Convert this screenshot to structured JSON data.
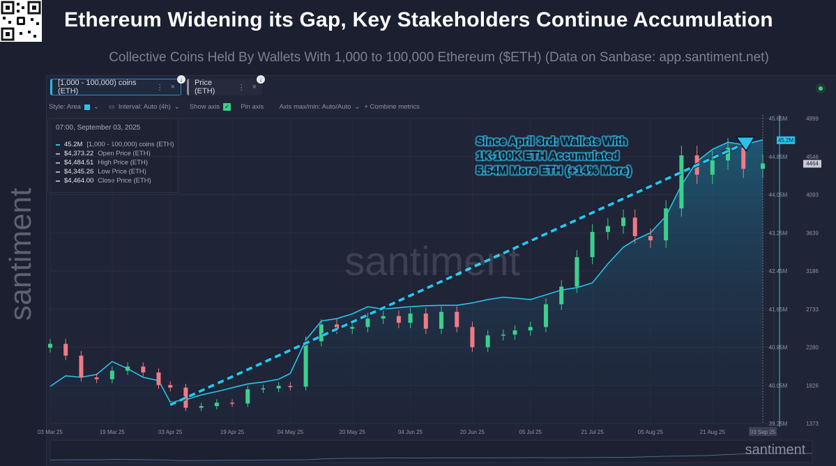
{
  "title": "Ethereum Widening its Gap, Key Stakeholders Continue Accumulation",
  "subtitle": "Collective Coins Held By Wallets With 1,000 to 100,000 Ethereum ($ETH) (Data on Sanbase: app.santiment.net)",
  "watermark": "santiment",
  "side_watermark": "santiment",
  "metric_chips": [
    {
      "label": "[1,000 - 100,000) coins (ETH)",
      "dots": "⋮",
      "close": "×"
    },
    {
      "label": "Price (ETH)",
      "dots": "⋮",
      "close": "×"
    }
  ],
  "toolbar": {
    "style": "Style: Area",
    "interval": "Interval: Auto (4h)",
    "show_axis": "Show axis",
    "pin_axis": "Pin axis",
    "axis_maxmin": "Axis max/min: Auto/Auto",
    "combine": "+ Combine metrics"
  },
  "legend": {
    "date": "07:00, September 03, 2025",
    "rows": [
      {
        "value": "45.2M",
        "label": "[1,000 - 100,000) coins (ETH)",
        "color": "#26c4ec"
      },
      {
        "value": "$4,373.22",
        "label": "Open Price (ETH)"
      },
      {
        "value": "$4,484.51",
        "label": "High Price (ETH)"
      },
      {
        "value": "$4,345.26",
        "label": "Low Price (ETH)"
      },
      {
        "value": "$4,464.00",
        "label": "Close Price (ETH)"
      }
    ]
  },
  "annotation": [
    "Since April 3rd: Wallets With",
    "1K-100K ETH Accumulated",
    "5.54M More ETH (+14% More)"
  ],
  "colors": {
    "holdings": "#26c4ec",
    "up": "#3ccf8e",
    "down": "#f07a86",
    "background": "#202437"
  },
  "chart_data": {
    "type": "line",
    "x_ticks": [
      "03 Mar 25",
      "19 Mar 25",
      "03 Apr 25",
      "19 Apr 25",
      "04 May 25",
      "20 May 25",
      "04 Jun 25",
      "20 Jun 25",
      "05 Jul 25",
      "21 Jul 25",
      "05 Aug 25",
      "21 Aug 25",
      "03 Sep 25"
    ],
    "y_right_holdings_ticks": [
      "45.65M",
      "44.85M",
      "44.05M",
      "43.25M",
      "42.45M",
      "41.65M",
      "40.85M",
      "40.05M",
      "39.25M"
    ],
    "y_right_price_ticks": [
      "4999",
      "4546",
      "4093",
      "3639",
      "3186",
      "2733",
      "2280",
      "1826",
      "1373"
    ],
    "holdings_ylim": [
      39.25,
      45.65
    ],
    "price_ylim": [
      1373,
      4999
    ],
    "current_holdings_label": "45.2M",
    "current_price_label": "4464",
    "series": [
      {
        "name": "[1,000 - 100,000) coins (ETH)",
        "unit": "M ETH",
        "style": "area",
        "x": [
          "03 Mar 25",
          "07 Mar 25",
          "11 Mar 25",
          "15 Mar 25",
          "19 Mar 25",
          "23 Mar 25",
          "27 Mar 25",
          "31 Mar 25",
          "03 Apr 25",
          "07 Apr 25",
          "11 Apr 25",
          "15 Apr 25",
          "19 Apr 25",
          "23 Apr 25",
          "27 Apr 25",
          "01 May 25",
          "04 May 25",
          "08 May 25",
          "12 May 25",
          "16 May 25",
          "20 May 25",
          "24 May 25",
          "28 May 25",
          "01 Jun 25",
          "04 Jun 25",
          "08 Jun 25",
          "12 Jun 25",
          "16 Jun 25",
          "20 Jun 25",
          "24 Jun 25",
          "28 Jun 25",
          "01 Jul 25",
          "05 Jul 25",
          "09 Jul 25",
          "13 Jul 25",
          "17 Jul 25",
          "21 Jul 25",
          "25 Jul 25",
          "29 Jul 25",
          "01 Aug 25",
          "05 Aug 25",
          "09 Aug 25",
          "13 Aug 25",
          "17 Aug 25",
          "21 Aug 25",
          "25 Aug 25",
          "29 Aug 25",
          "03 Sep 25"
        ],
        "values": [
          40.03,
          40.25,
          40.22,
          40.28,
          40.55,
          40.4,
          40.22,
          40.15,
          39.7,
          39.75,
          39.85,
          39.92,
          40.0,
          40.08,
          40.12,
          40.18,
          40.3,
          41.0,
          41.4,
          41.45,
          41.55,
          41.7,
          41.65,
          41.68,
          41.7,
          41.72,
          41.73,
          41.73,
          41.78,
          41.85,
          41.9,
          41.88,
          41.85,
          41.95,
          42.05,
          42.1,
          42.2,
          42.6,
          42.95,
          43.1,
          43.25,
          43.6,
          44.25,
          44.75,
          45.0,
          45.15,
          45.1,
          45.2
        ]
      },
      {
        "name": "Price (ETH)",
        "unit": "USD",
        "style": "candles",
        "x": [
          "03 Mar 25",
          "07 Mar 25",
          "11 Mar 25",
          "15 Mar 25",
          "19 Mar 25",
          "23 Mar 25",
          "27 Mar 25",
          "31 Mar 25",
          "03 Apr 25",
          "07 Apr 25",
          "11 Apr 25",
          "15 Apr 25",
          "19 Apr 25",
          "23 Apr 25",
          "27 Apr 25",
          "01 May 25",
          "04 May 25",
          "08 May 25",
          "12 May 25",
          "16 May 25",
          "20 May 25",
          "24 May 25",
          "28 May 25",
          "01 Jun 25",
          "04 Jun 25",
          "08 Jun 25",
          "12 Jun 25",
          "16 Jun 25",
          "20 Jun 25",
          "24 Jun 25",
          "28 Jun 25",
          "01 Jul 25",
          "05 Jul 25",
          "09 Jul 25",
          "13 Jul 25",
          "17 Jul 25",
          "21 Jul 25",
          "25 Jul 25",
          "29 Jul 25",
          "01 Aug 25",
          "05 Aug 25",
          "09 Aug 25",
          "13 Aug 25",
          "17 Aug 25",
          "21 Aug 25",
          "25 Aug 25",
          "29 Aug 25",
          "03 Sep 25"
        ],
        "values": [
          2320,
          2180,
          1920,
          1900,
          2000,
          2050,
          1980,
          1830,
          1800,
          1560,
          1580,
          1620,
          1610,
          1780,
          1790,
          1820,
          1810,
          2350,
          2550,
          2500,
          2520,
          2620,
          2650,
          2570,
          2680,
          2500,
          2700,
          2520,
          2280,
          2420,
          2430,
          2480,
          2520,
          2790,
          3000,
          3350,
          3650,
          3720,
          3820,
          3600,
          3550,
          3930,
          4560,
          4330,
          4500,
          4650,
          4400,
          4464
        ]
      }
    ]
  }
}
